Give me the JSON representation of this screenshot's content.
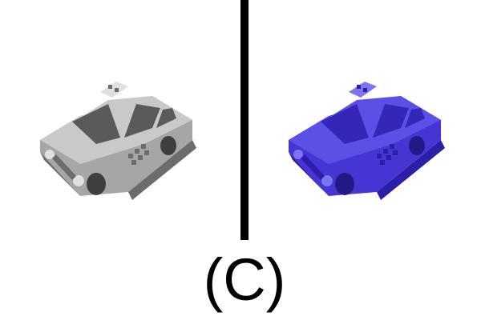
{
  "figure": {
    "label": "(C)"
  },
  "panels": [
    {
      "subject": "taxi-car",
      "colors": {
        "top": "#c9c9c9",
        "side": "#a6a6a6",
        "dark": "#6c6c6c",
        "window": "#5a5a5a",
        "wheel": "#3f3f3f",
        "accent": "#e0e0e0"
      }
    },
    {
      "subject": "taxi-car",
      "colors": {
        "top": "#5b4fe6",
        "side": "#4536d4",
        "dark": "#2b1fa8",
        "window": "#3326b8",
        "wheel": "#231a86",
        "accent": "#7d74f0"
      }
    }
  ]
}
